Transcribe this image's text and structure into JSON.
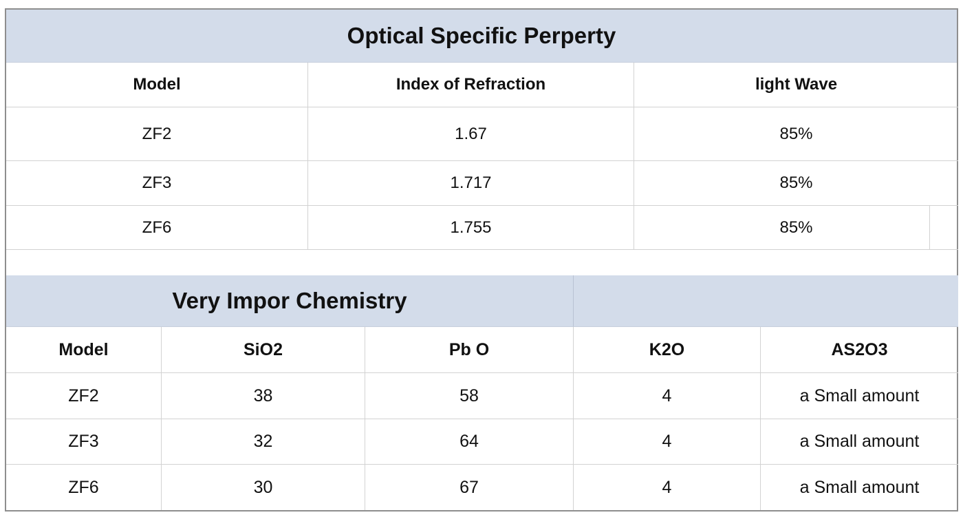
{
  "optical": {
    "title": "Optical Specific Perperty",
    "headers": [
      "Model",
      "Index of Refraction",
      "light Wave"
    ],
    "rows": [
      [
        "ZF2",
        "1.67",
        "85%"
      ],
      [
        "ZF3",
        "1.717",
        "85%"
      ],
      [
        "ZF6",
        "1.755",
        "85%"
      ]
    ]
  },
  "chemistry": {
    "title": "Very Impor Chemistry",
    "headers": [
      "Model",
      "SiO2",
      "Pb O",
      "K2O",
      "AS2O3"
    ],
    "rows": [
      [
        "ZF2",
        "38",
        "58",
        "4",
        "a Small amount"
      ],
      [
        "ZF3",
        "32",
        "64",
        "4",
        "a Small amount"
      ],
      [
        "ZF6",
        "30",
        "67",
        "4",
        "a Small amount"
      ]
    ]
  }
}
